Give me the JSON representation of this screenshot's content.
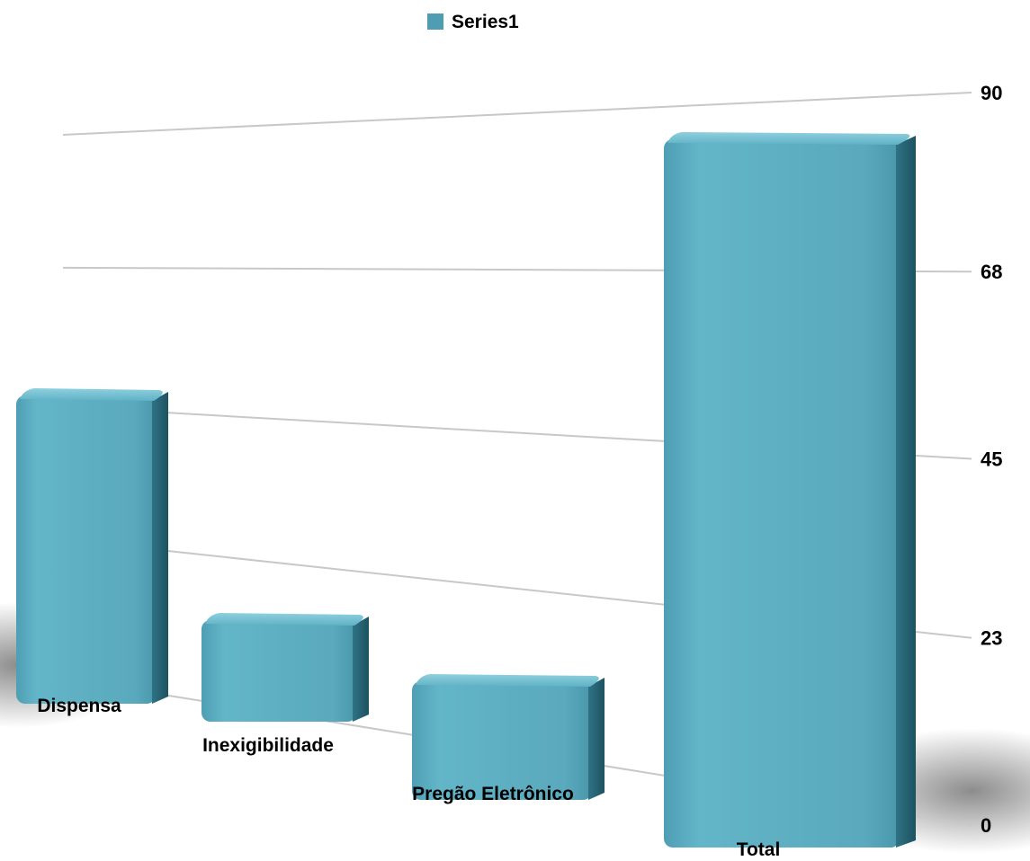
{
  "chart_data": {
    "type": "bar",
    "categories": [
      "Dispensa",
      "Inexigibilidade",
      "Pregão Eletrônico",
      "Total"
    ],
    "series": [
      {
        "name": "Series1",
        "values": [
          46,
          13,
          10,
          85
        ]
      }
    ],
    "y_ticks": [
      "0",
      "23",
      "45",
      "68",
      "90"
    ],
    "ylim": [
      0,
      90
    ],
    "grid": true,
    "legend": "top",
    "style": "3d-perspective",
    "bar_color": "#5DB0C4"
  }
}
